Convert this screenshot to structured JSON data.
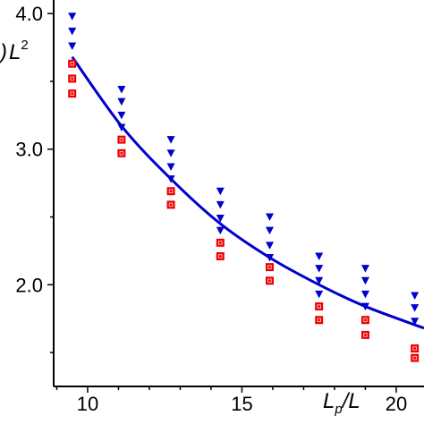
{
  "chart_data": {
    "type": "scatter",
    "title": "",
    "xlabel": {
      "main": "L",
      "sub": "p",
      "rest": "/L"
    },
    "ylabel": {
      "main": "L",
      "sup": "2"
    },
    "x_ticks": [
      10,
      15,
      20
    ],
    "y_ticks": [
      "2.0",
      "3.0",
      "4.0"
    ],
    "xlim": [
      8.9,
      20.9
    ],
    "ylim": [
      1.25,
      4.1
    ],
    "series": [
      {
        "marker": "triangle-down",
        "color": "#0000cc",
        "points": [
          [
            9.5,
            3.98
          ],
          [
            9.5,
            3.87
          ],
          [
            9.5,
            3.76
          ],
          [
            11.1,
            3.44
          ],
          [
            11.1,
            3.35
          ],
          [
            11.1,
            3.25
          ],
          [
            11.1,
            3.16
          ],
          [
            12.7,
            3.07
          ],
          [
            12.7,
            2.97
          ],
          [
            12.7,
            2.87
          ],
          [
            12.7,
            2.78
          ],
          [
            14.3,
            2.69
          ],
          [
            14.3,
            2.59
          ],
          [
            14.3,
            2.49
          ],
          [
            14.3,
            2.4
          ],
          [
            15.9,
            2.5
          ],
          [
            15.9,
            2.4
          ],
          [
            15.9,
            2.29
          ],
          [
            15.9,
            2.2
          ],
          [
            17.5,
            2.21
          ],
          [
            17.5,
            2.12
          ],
          [
            17.5,
            2.03
          ],
          [
            17.5,
            1.93
          ],
          [
            19.0,
            2.12
          ],
          [
            19.0,
            2.03
          ],
          [
            19.0,
            1.93
          ],
          [
            19.0,
            1.84
          ],
          [
            20.6,
            1.92
          ],
          [
            20.6,
            1.83
          ],
          [
            20.6,
            1.73
          ]
        ]
      },
      {
        "marker": "square",
        "color": "#ee0000",
        "points": [
          [
            9.5,
            3.63
          ],
          [
            9.5,
            3.52
          ],
          [
            9.5,
            3.41
          ],
          [
            11.1,
            3.07
          ],
          [
            11.1,
            2.97
          ],
          [
            12.7,
            2.69
          ],
          [
            12.7,
            2.59
          ],
          [
            14.3,
            2.31
          ],
          [
            14.3,
            2.21
          ],
          [
            15.9,
            2.13
          ],
          [
            15.9,
            2.03
          ],
          [
            17.5,
            1.84
          ],
          [
            17.5,
            1.74
          ],
          [
            19.0,
            1.74
          ],
          [
            19.0,
            1.63
          ],
          [
            20.6,
            1.53
          ],
          [
            20.6,
            1.46
          ]
        ]
      },
      {
        "type": "line",
        "color": "#0000cc",
        "points": [
          [
            9.5,
            3.68
          ],
          [
            11.1,
            3.17
          ],
          [
            12.7,
            2.78
          ],
          [
            14.3,
            2.45
          ],
          [
            15.9,
            2.2
          ],
          [
            17.5,
            2.0
          ],
          [
            19.0,
            1.84
          ],
          [
            20.9,
            1.68
          ]
        ]
      }
    ]
  }
}
